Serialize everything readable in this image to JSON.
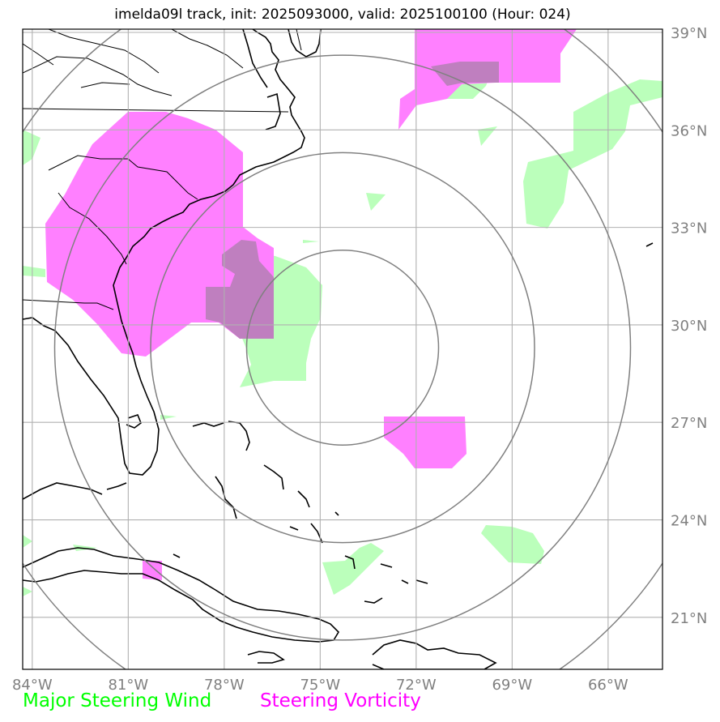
{
  "title": "imelda09l track, init: 2025093000, valid: 2025100100 (Hour: 024)",
  "map": {
    "projection": "plate-carree",
    "lon_range": [
      -84.3,
      -64.3
    ],
    "lat_range": [
      19.4,
      39.1
    ],
    "lon_ticks": [
      -84,
      -81,
      -78,
      -75,
      -72,
      -69,
      -66
    ],
    "lon_tick_labels": [
      "84°W",
      "81°W",
      "78°W",
      "75°W",
      "72°W",
      "69°W",
      "66°W"
    ],
    "lat_ticks": [
      21,
      24,
      27,
      30,
      33,
      36,
      39
    ],
    "lat_tick_labels": [
      "21°N",
      "24°N",
      "27°N",
      "30°N",
      "33°N",
      "36°N",
      "39°N"
    ],
    "grid": true,
    "storm_center": {
      "lon": -74.3,
      "lat": 29.3
    },
    "range_rings_deg": [
      3,
      6,
      9,
      12
    ],
    "colors": {
      "wind": "#00ff00",
      "wind_fill": "#bbffbb",
      "vorticity": "#ff00ff",
      "vorticity_fill": "#ff80ff",
      "overlap_fill": "#bf7fbf",
      "grid": "#b0b0b0",
      "rings": "#808080",
      "coast": "#000000"
    }
  },
  "legend": {
    "wind_label": "Major Steering Wind",
    "vorticity_label": "Steering Vorticity"
  }
}
